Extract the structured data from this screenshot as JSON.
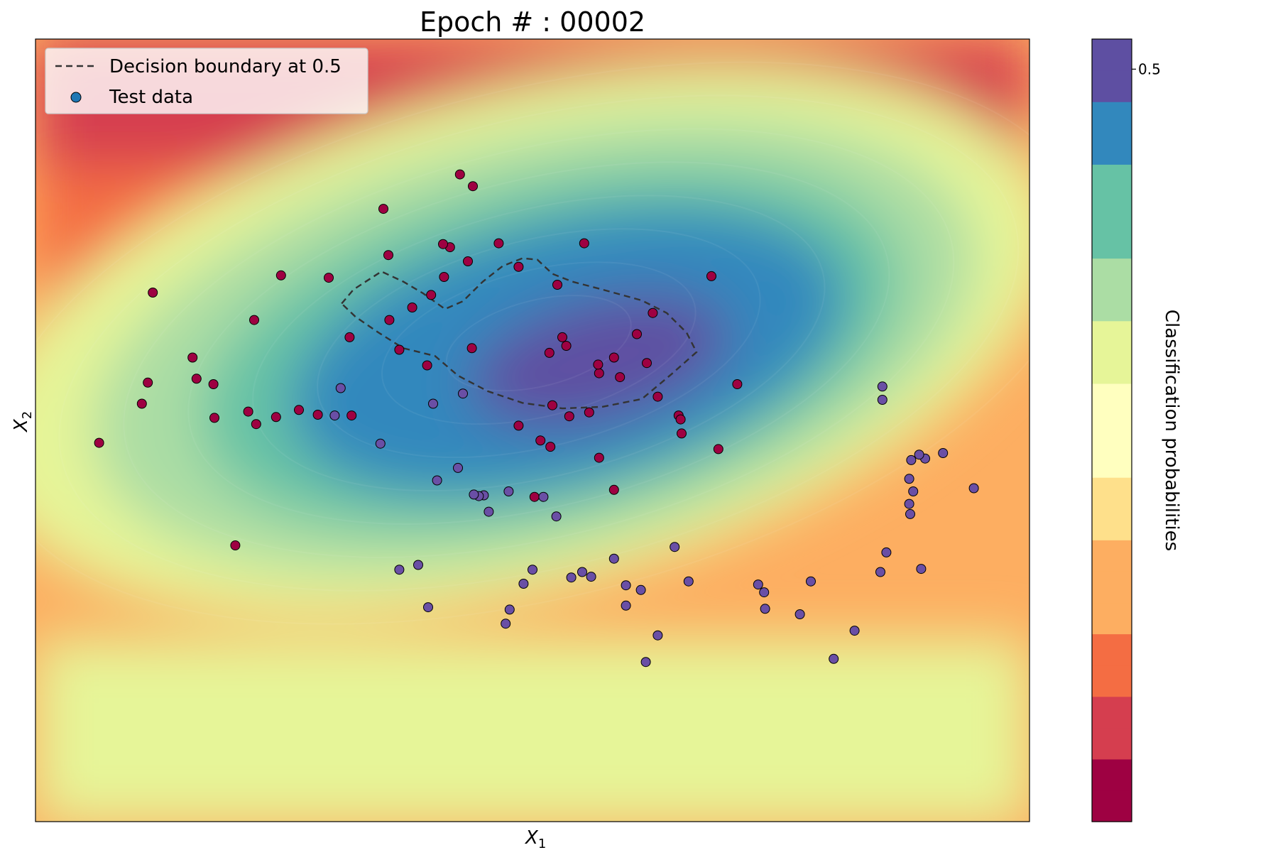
{
  "chart_data": {
    "type": "contour-scatter",
    "title": "Epoch # : 00002",
    "xlabel": "X",
    "xlabel_sub": "1",
    "ylabel": "X",
    "ylabel_sub": "2",
    "xlim": [
      0,
      100
    ],
    "ylim": [
      0,
      100
    ],
    "grid": false,
    "legend": {
      "placement": "top-left",
      "entries": [
        {
          "label": "Decision boundary at 0.5",
          "marker": "dashed-line"
        },
        {
          "label": "Test data",
          "marker": "dot",
          "color": "#1f77b4"
        }
      ]
    },
    "colorbar": {
      "label": "Classification probabilities",
      "range": [
        0.0,
        0.52
      ],
      "levels": 25,
      "ticks": [
        {
          "value": 0.5,
          "label": "0.5"
        }
      ],
      "colormap": "Spectral"
    },
    "colors": {
      "class0": "#9e0142",
      "class1": "#6a4fa5",
      "boundary": "#333333"
    },
    "decision_boundary": [
      [
        30.8,
        66.2
      ],
      [
        32.0,
        68.0
      ],
      [
        34.8,
        70.3
      ],
      [
        37.0,
        69.0
      ],
      [
        39.0,
        67.5
      ],
      [
        41.2,
        65.5
      ],
      [
        43.0,
        66.5
      ],
      [
        45.0,
        69.0
      ],
      [
        47.0,
        71.0
      ],
      [
        49.0,
        72.0
      ],
      [
        50.5,
        71.8
      ],
      [
        52.0,
        70.0
      ],
      [
        54.0,
        69.0
      ],
      [
        57.0,
        68.0
      ],
      [
        61.0,
        66.6
      ],
      [
        63.5,
        65.0
      ],
      [
        65.5,
        62.5
      ],
      [
        66.5,
        60.0
      ],
      [
        64.0,
        57.2
      ],
      [
        61.0,
        54.0
      ],
      [
        57.0,
        53.0
      ],
      [
        53.0,
        52.8
      ],
      [
        49.0,
        53.5
      ],
      [
        45.5,
        55.0
      ],
      [
        42.5,
        57.0
      ],
      [
        40.2,
        59.5
      ],
      [
        37.0,
        60.5
      ],
      [
        34.5,
        62.5
      ],
      [
        32.2,
        64.5
      ],
      [
        30.8,
        66.2
      ]
    ],
    "series": [
      {
        "class": 0,
        "x": [
          35.0,
          35.5,
          41.7,
          41.0,
          52.5,
          55.2,
          48.6,
          29.5,
          24.7,
          39.8,
          46.6,
          35.6,
          31.6,
          37.9,
          36.6,
          39.4,
          43.9,
          50.8,
          52.0,
          53.4,
          58.8,
          60.5,
          61.5,
          62.1,
          58.2,
          55.7,
          53.7,
          53.0,
          56.7,
          11.8,
          15.8,
          16.2,
          21.4,
          11.3,
          18.0,
          22.2,
          26.5,
          24.2,
          28.4,
          22.0,
          31.8,
          6.4,
          10.7,
          17.9,
          51.7,
          56.6,
          62.6,
          68.0,
          65.0,
          64.7,
          56.7,
          70.6,
          64.9,
          51.8,
          20.1,
          68.7,
          58.2,
          50.2,
          42.7,
          44.0,
          41.1,
          43.5,
          48.6
        ],
        "y": [
          78.3,
          72.4,
          73.4,
          73.8,
          68.6,
          73.9,
          70.9,
          69.5,
          69.8,
          67.3,
          73.9,
          64.1,
          61.9,
          65.7,
          60.3,
          58.3,
          60.5,
          48.7,
          53.2,
          60.8,
          56.8,
          62.3,
          58.6,
          65.0,
          59.3,
          52.3,
          51.8,
          61.9,
          57.3,
          67.6,
          59.3,
          56.6,
          52.4,
          56.1,
          51.6,
          50.8,
          52.6,
          51.7,
          52.0,
          64.1,
          51.9,
          48.4,
          53.4,
          55.9,
          59.9,
          58.4,
          54.3,
          69.7,
          49.6,
          51.9,
          46.5,
          55.9,
          51.4,
          47.9,
          35.3,
          47.6,
          42.4,
          41.5,
          82.7,
          81.2,
          69.6,
          71.6,
          50.6
        ]
      },
      {
        "class": 1,
        "x": [
          30.7,
          30.1,
          40.0,
          43.0,
          42.5,
          34.7,
          40.4,
          38.5,
          51.1,
          45.1,
          47.6,
          45.6,
          44.6,
          52.4,
          55.9,
          55.0,
          60.9,
          65.7,
          72.7,
          73.3,
          78.0,
          73.4,
          76.9,
          80.3,
          82.4,
          88.0,
          85.6,
          85.0,
          87.9,
          94.4,
          91.3,
          88.1,
          88.3,
          87.9,
          89.5,
          88.9,
          89.1,
          85.2,
          85.2,
          64.3,
          62.6,
          61.4,
          59.4,
          59.4,
          58.2,
          53.9,
          49.1,
          50.0,
          47.7,
          47.3,
          39.5,
          36.6,
          44.1
        ],
        "y": [
          55.4,
          51.9,
          53.4,
          54.7,
          45.2,
          48.3,
          43.6,
          32.8,
          41.5,
          41.7,
          42.2,
          39.6,
          41.6,
          39.0,
          31.3,
          31.9,
          29.6,
          30.7,
          30.3,
          29.3,
          30.7,
          27.2,
          26.5,
          20.8,
          24.4,
          39.3,
          34.4,
          31.9,
          40.6,
          42.6,
          47.1,
          46.2,
          42.2,
          43.8,
          46.4,
          46.9,
          32.3,
          53.9,
          55.6,
          35.1,
          23.8,
          20.4,
          27.6,
          30.2,
          33.6,
          31.2,
          30.4,
          32.2,
          27.1,
          25.3,
          27.4,
          32.2,
          41.8
        ]
      }
    ]
  }
}
